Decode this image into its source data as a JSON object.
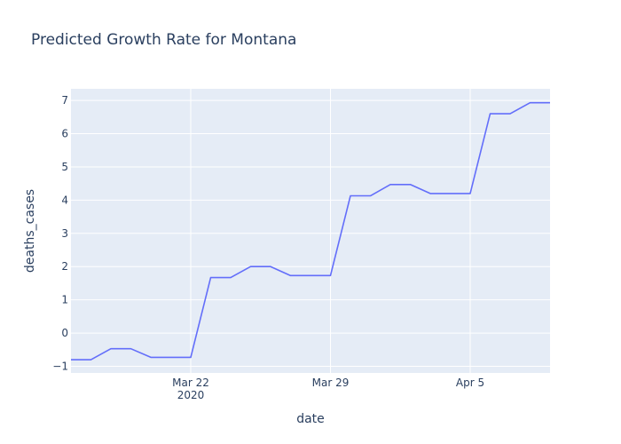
{
  "chart_data": {
    "type": "line",
    "title": "Predicted Growth Rate for Montana",
    "xlabel": "date",
    "ylabel": "deaths_cases",
    "x_axis": {
      "type": "date",
      "range": [
        "2020-03-16",
        "2020-04-09"
      ],
      "ticks": [
        {
          "date": "2020-03-22",
          "label": "Mar 22",
          "sublabel": "2020"
        },
        {
          "date": "2020-03-29",
          "label": "Mar 29",
          "sublabel": ""
        },
        {
          "date": "2020-04-05",
          "label": "Apr 5",
          "sublabel": ""
        }
      ]
    },
    "y_axis": {
      "range": [
        -1.2,
        7.35
      ],
      "ticks": [
        {
          "value": -1,
          "label": "−1"
        },
        {
          "value": 0,
          "label": "0"
        },
        {
          "value": 1,
          "label": "1"
        },
        {
          "value": 2,
          "label": "2"
        },
        {
          "value": 3,
          "label": "3"
        },
        {
          "value": 4,
          "label": "4"
        },
        {
          "value": 5,
          "label": "5"
        },
        {
          "value": 6,
          "label": "6"
        },
        {
          "value": 7,
          "label": "7"
        }
      ]
    },
    "grid": true,
    "series": [
      {
        "color": "#636efa",
        "points": [
          {
            "x": "2020-03-16",
            "y": -0.8
          },
          {
            "x": "2020-03-17",
            "y": -0.8
          },
          {
            "x": "2020-03-18",
            "y": -0.47
          },
          {
            "x": "2020-03-19",
            "y": -0.47
          },
          {
            "x": "2020-03-20",
            "y": -0.73
          },
          {
            "x": "2020-03-21",
            "y": -0.73
          },
          {
            "x": "2020-03-22",
            "y": -0.73
          },
          {
            "x": "2020-03-23",
            "y": 1.67
          },
          {
            "x": "2020-03-24",
            "y": 1.67
          },
          {
            "x": "2020-03-25",
            "y": 2.0
          },
          {
            "x": "2020-03-26",
            "y": 2.0
          },
          {
            "x": "2020-03-27",
            "y": 1.73
          },
          {
            "x": "2020-03-28",
            "y": 1.73
          },
          {
            "x": "2020-03-29",
            "y": 1.73
          },
          {
            "x": "2020-03-30",
            "y": 4.13
          },
          {
            "x": "2020-03-31",
            "y": 4.13
          },
          {
            "x": "2020-04-01",
            "y": 4.47
          },
          {
            "x": "2020-04-02",
            "y": 4.47
          },
          {
            "x": "2020-04-03",
            "y": 4.2
          },
          {
            "x": "2020-04-04",
            "y": 4.2
          },
          {
            "x": "2020-04-05",
            "y": 4.2
          },
          {
            "x": "2020-04-06",
            "y": 6.6
          },
          {
            "x": "2020-04-07",
            "y": 6.6
          },
          {
            "x": "2020-04-08",
            "y": 6.93
          },
          {
            "x": "2020-04-09",
            "y": 6.93
          }
        ]
      }
    ]
  },
  "colors": {
    "plot_background": "#e5ecf6",
    "grid": "#ffffff",
    "text": "#2a3f5f"
  }
}
